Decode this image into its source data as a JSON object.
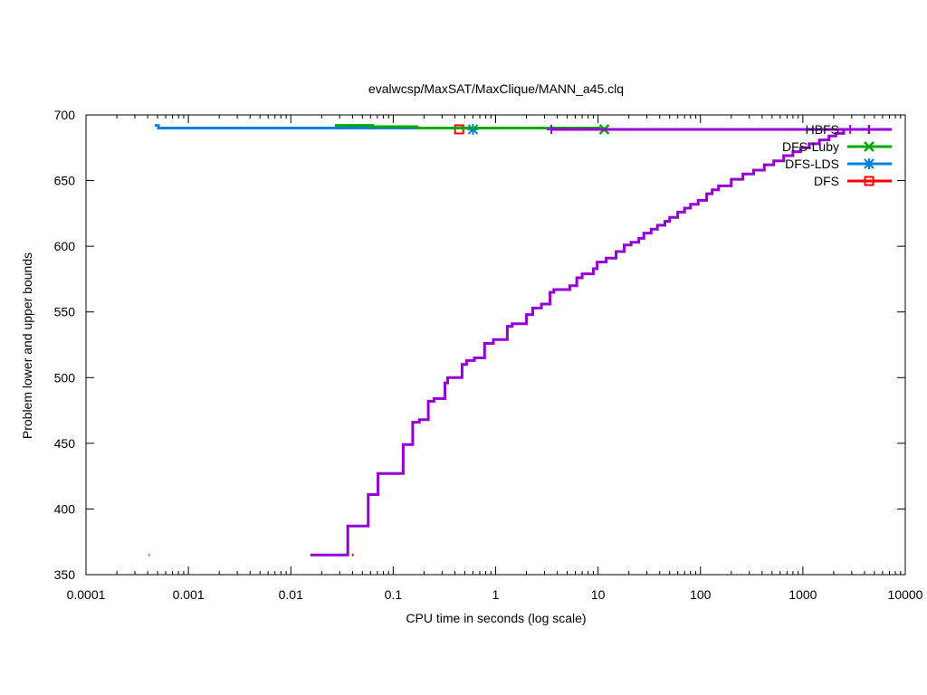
{
  "chart_data": {
    "type": "line",
    "title": "evalwcsp/MaxSAT/MaxClique/MANN_a45.clq",
    "xlabel": "CPU time in seconds (log scale)",
    "ylabel": "Problem lower and upper bounds",
    "xscale": "log",
    "xlim": [
      0.0001,
      10000
    ],
    "ylim": [
      350,
      700
    ],
    "x_ticks": [
      0.0001,
      0.001,
      0.01,
      0.1,
      1,
      10,
      100,
      1000,
      10000
    ],
    "x_tick_labels": [
      "0.0001",
      "0.001",
      "0.01",
      "0.1",
      "1",
      "10",
      "100",
      "1000",
      "10000"
    ],
    "y_ticks": [
      350,
      400,
      450,
      500,
      550,
      600,
      650,
      700
    ],
    "y_tick_labels": [
      "350",
      "400",
      "450",
      "500",
      "550",
      "600",
      "650",
      "700"
    ],
    "grid": false,
    "legend_position": "top-right",
    "series": [
      {
        "name": "HBFS",
        "color": "#9400d3",
        "marker": "plus",
        "lower": [
          [
            0.0155,
            365
          ],
          [
            0.036,
            365
          ],
          [
            0.036,
            387
          ],
          [
            0.057,
            387
          ],
          [
            0.057,
            411
          ],
          [
            0.071,
            411
          ],
          [
            0.071,
            427
          ],
          [
            0.125,
            427
          ],
          [
            0.125,
            449
          ],
          [
            0.155,
            449
          ],
          [
            0.155,
            466
          ],
          [
            0.18,
            466
          ],
          [
            0.18,
            468
          ],
          [
            0.22,
            468
          ],
          [
            0.22,
            482
          ],
          [
            0.25,
            482
          ],
          [
            0.25,
            484
          ],
          [
            0.32,
            484
          ],
          [
            0.32,
            496
          ],
          [
            0.34,
            496
          ],
          [
            0.34,
            500
          ],
          [
            0.47,
            500
          ],
          [
            0.47,
            510
          ],
          [
            0.52,
            510
          ],
          [
            0.52,
            513
          ],
          [
            0.62,
            513
          ],
          [
            0.62,
            515
          ],
          [
            0.78,
            515
          ],
          [
            0.78,
            526
          ],
          [
            0.95,
            526
          ],
          [
            0.95,
            529
          ],
          [
            1.3,
            529
          ],
          [
            1.3,
            539
          ],
          [
            1.45,
            539
          ],
          [
            1.45,
            541
          ],
          [
            2.0,
            541
          ],
          [
            2.0,
            548
          ],
          [
            2.3,
            548
          ],
          [
            2.3,
            553
          ],
          [
            2.8,
            553
          ],
          [
            2.8,
            556
          ],
          [
            3.4,
            556
          ],
          [
            3.4,
            565
          ],
          [
            3.7,
            565
          ],
          [
            3.7,
            567
          ],
          [
            5.3,
            567
          ],
          [
            5.3,
            570
          ],
          [
            6.2,
            570
          ],
          [
            6.2,
            576
          ],
          [
            7.0,
            576
          ],
          [
            7.0,
            579
          ],
          [
            9.0,
            579
          ],
          [
            9.0,
            583
          ],
          [
            9.8,
            583
          ],
          [
            9.8,
            588
          ],
          [
            12,
            588
          ],
          [
            12,
            591
          ],
          [
            15,
            591
          ],
          [
            15,
            596
          ],
          [
            18,
            596
          ],
          [
            18,
            601
          ],
          [
            21,
            601
          ],
          [
            21,
            603
          ],
          [
            25,
            603
          ],
          [
            25,
            606
          ],
          [
            28,
            606
          ],
          [
            28,
            610
          ],
          [
            33,
            610
          ],
          [
            33,
            613
          ],
          [
            38,
            613
          ],
          [
            38,
            616
          ],
          [
            45,
            616
          ],
          [
            45,
            619
          ],
          [
            50,
            619
          ],
          [
            50,
            622
          ],
          [
            60,
            622
          ],
          [
            60,
            626
          ],
          [
            70,
            626
          ],
          [
            70,
            629
          ],
          [
            80,
            629
          ],
          [
            80,
            632
          ],
          [
            95,
            632
          ],
          [
            95,
            635
          ],
          [
            115,
            635
          ],
          [
            115,
            640
          ],
          [
            130,
            640
          ],
          [
            130,
            643
          ],
          [
            150,
            643
          ],
          [
            150,
            646
          ],
          [
            200,
            646
          ],
          [
            200,
            651
          ],
          [
            260,
            651
          ],
          [
            260,
            655
          ],
          [
            330,
            655
          ],
          [
            330,
            658
          ],
          [
            420,
            658
          ],
          [
            420,
            662
          ],
          [
            520,
            662
          ],
          [
            520,
            665
          ],
          [
            650,
            665
          ],
          [
            650,
            669
          ],
          [
            800,
            669
          ],
          [
            800,
            672
          ],
          [
            950,
            672
          ],
          [
            950,
            675
          ],
          [
            1150,
            675
          ],
          [
            1150,
            678
          ],
          [
            1450,
            678
          ],
          [
            1450,
            681
          ],
          [
            1800,
            681
          ],
          [
            1800,
            684
          ],
          [
            2100,
            684
          ],
          [
            2100,
            686
          ],
          [
            2500,
            686
          ],
          [
            2500,
            689
          ],
          [
            7000,
            689
          ]
        ],
        "upper": [
          [
            3.5,
            689
          ],
          [
            7000,
            689
          ]
        ],
        "markers": [
          [
            3.5,
            689
          ],
          [
            2900,
            689
          ],
          [
            4400,
            689
          ]
        ]
      },
      {
        "name": "DFS-Luby",
        "color": "#00aa00",
        "marker": "x",
        "upper": [
          [
            0.027,
            692
          ],
          [
            0.063,
            692
          ],
          [
            0.063,
            691
          ],
          [
            0.17,
            691
          ],
          [
            0.17,
            690
          ],
          [
            11.5,
            690
          ]
        ],
        "markers": [
          [
            11.5,
            689
          ]
        ]
      },
      {
        "name": "DFS-LDS",
        "color": "#0080e0",
        "marker": "star",
        "lower": [
          [
            0.00041,
            365
          ],
          [
            0.00042,
            365
          ]
        ],
        "upper": [
          [
            0.00047,
            692
          ],
          [
            0.00051,
            692
          ],
          [
            0.00051,
            690
          ],
          [
            0.6,
            690
          ]
        ],
        "markers": [
          [
            0.6,
            689
          ]
        ]
      },
      {
        "name": "DFS",
        "color": "#ff0000",
        "marker": "square",
        "lower": [
          [
            0.0395,
            365
          ],
          [
            0.041,
            365
          ]
        ],
        "markers": [
          [
            0.44,
            689
          ]
        ]
      }
    ]
  }
}
